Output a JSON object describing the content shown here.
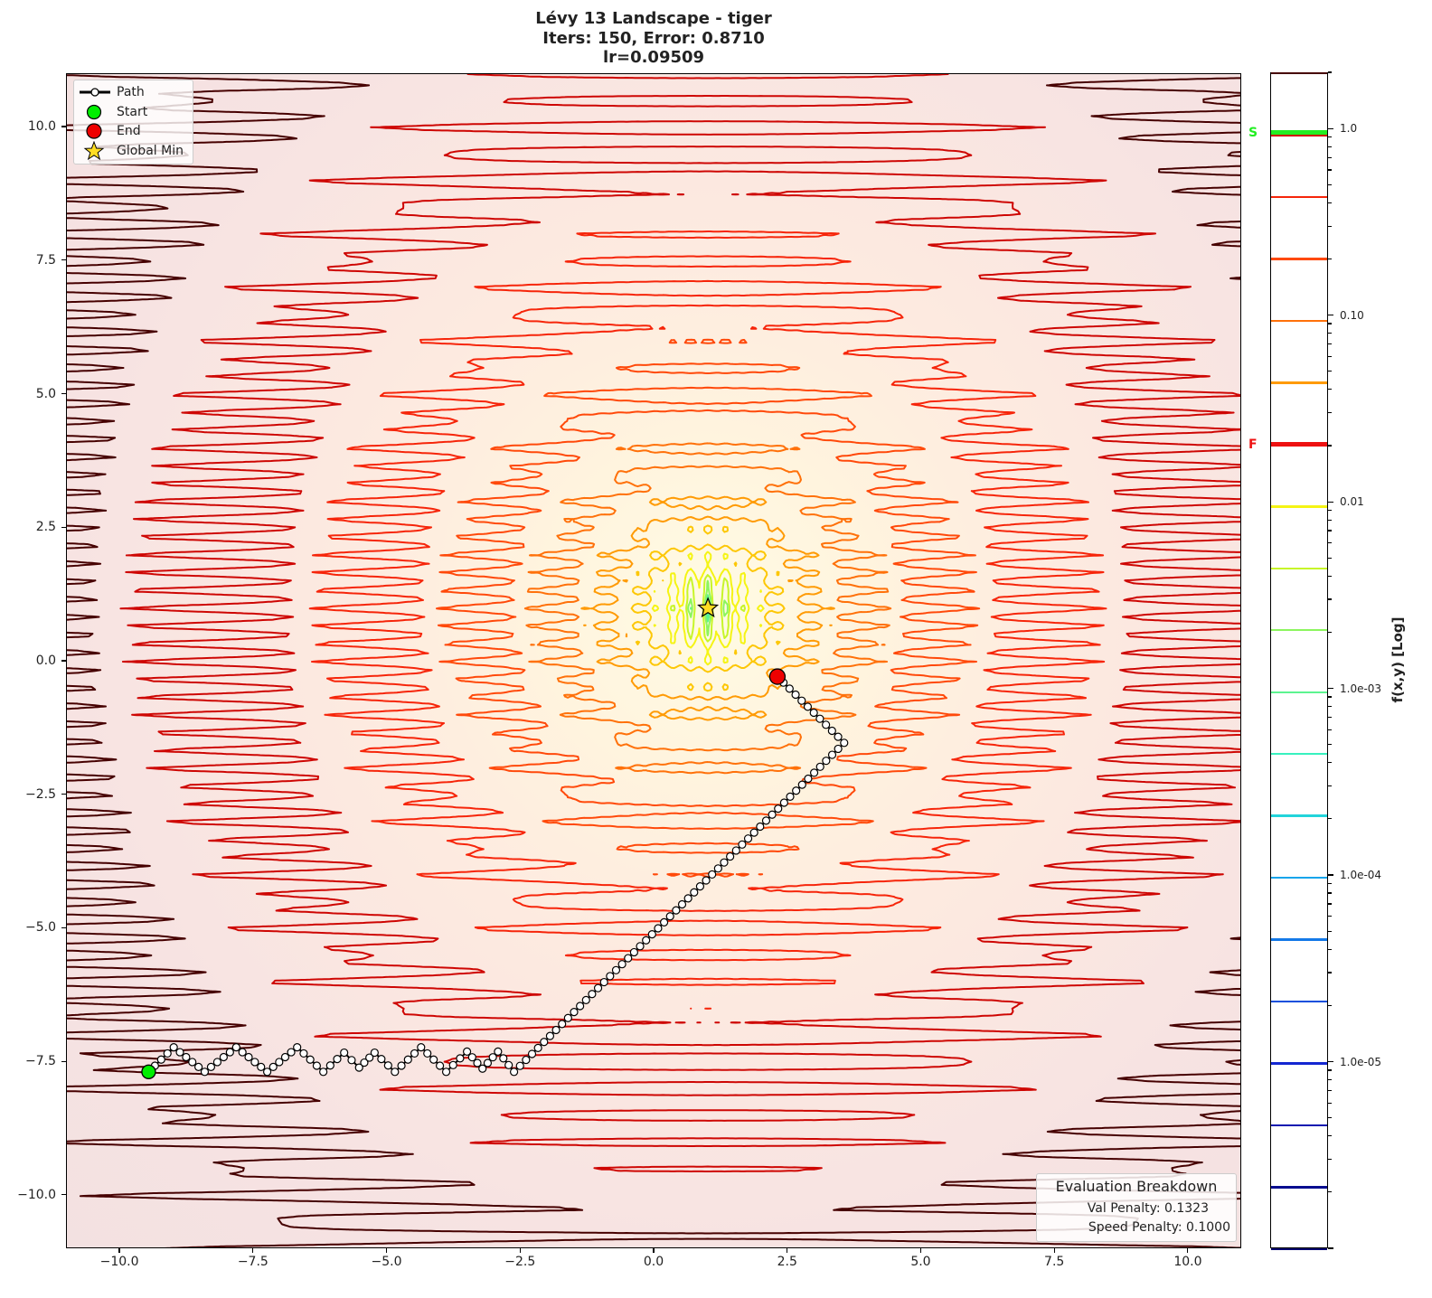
{
  "chart_data": {
    "type": "contour",
    "title_lines": [
      "Lévy 13 Landscape - tiger",
      "Iters: 150, Error: 0.8710",
      "lr=0.09509"
    ],
    "xlim": [
      -11,
      11
    ],
    "ylim": [
      -11,
      11
    ],
    "xticks": [
      -10,
      -7.5,
      -5,
      -2.5,
      0,
      2.5,
      5,
      7.5,
      10
    ],
    "xtick_labels": [
      "−10.0",
      "−7.5",
      "−5.0",
      "−2.5",
      "0.0",
      "2.5",
      "5.0",
      "7.5",
      "10.0"
    ],
    "yticks": [
      10,
      7.5,
      5,
      2.5,
      0,
      -2.5,
      -5,
      -7.5,
      -10
    ],
    "ytick_labels": [
      "10.0",
      "7.5",
      "5.0",
      "2.5",
      "0.0",
      "−2.5",
      "−5.0",
      "−7.5",
      "−10.0"
    ],
    "grid": false,
    "colorbar": {
      "label": "f(x,y) [Log]",
      "scale": "log",
      "range": [
        1e-06,
        2
      ],
      "n_levels": 20,
      "ticks": [
        1.0,
        0.1,
        0.01,
        0.001,
        0.0001,
        1e-05
      ],
      "tick_labels": [
        "1.0",
        "0.10",
        "0.01",
        "1.0e-03",
        "1.0e-04",
        "1.0e-05"
      ],
      "markers": [
        {
          "label": "S",
          "value": 0.95,
          "color": "#22ee22"
        },
        {
          "label": "F",
          "value": 0.0203,
          "color": "#ee1111"
        }
      ]
    },
    "legend": {
      "placement": "top-left",
      "entries": [
        "Path",
        "Start",
        "End",
        "Global Min"
      ]
    },
    "path_vertices": [
      [
        -9.47,
        -7.68
      ],
      [
        -9.0,
        -7.22
      ],
      [
        -8.42,
        -7.68
      ],
      [
        -7.83,
        -7.22
      ],
      [
        -7.25,
        -7.68
      ],
      [
        -6.69,
        -7.22
      ],
      [
        -6.2,
        -7.68
      ],
      [
        -5.81,
        -7.32
      ],
      [
        -5.53,
        -7.6
      ],
      [
        -5.24,
        -7.32
      ],
      [
        -4.86,
        -7.68
      ],
      [
        -4.37,
        -7.22
      ],
      [
        -3.9,
        -7.68
      ],
      [
        -3.51,
        -7.3
      ],
      [
        -3.22,
        -7.62
      ],
      [
        -2.93,
        -7.3
      ],
      [
        -2.63,
        -7.68
      ],
      [
        3.55,
        -1.52
      ],
      [
        2.3,
        -0.28
      ]
    ],
    "start": [
      -9.47,
      -7.68
    ],
    "end": [
      2.3,
      -0.28
    ],
    "global_min": [
      1,
      1
    ],
    "colors": {
      "start": "#00ee00",
      "end": "#ee0000",
      "global_min": "#ffdd22",
      "path": "#000000"
    }
  },
  "eval_box": {
    "title": "Evaluation Breakdown",
    "val_penalty": "Val Penalty: 0.1323",
    "speed_penalty": "Speed Penalty: 0.1000"
  }
}
